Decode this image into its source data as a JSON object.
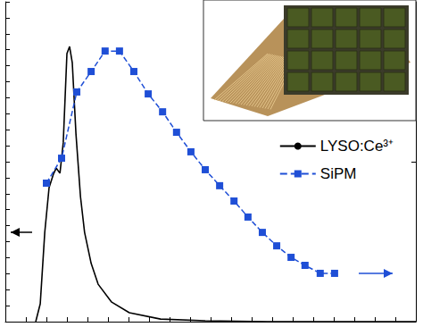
{
  "chart_data": {
    "type": "line",
    "xlim": [
      0,
      100
    ],
    "xticks": [
      0,
      5,
      10,
      15,
      20,
      25,
      30,
      35,
      40,
      45,
      50,
      55,
      60,
      65,
      70,
      75,
      80,
      85,
      90,
      95,
      100
    ],
    "ylim": [
      0,
      100
    ],
    "yticks": [
      0,
      5,
      10,
      15,
      20,
      25,
      30,
      35,
      40,
      45,
      50,
      55,
      60,
      65,
      70,
      75,
      80,
      85,
      90,
      95,
      100
    ],
    "y2lim": [
      0,
      100
    ],
    "y2ticks": [
      0,
      50,
      100
    ],
    "tick_labels": false,
    "grid": false,
    "legend": "right",
    "series": [
      {
        "name": "LYSO:Ce³⁺",
        "color": "#000000",
        "line_style": "solid",
        "marker": "none",
        "x": [
          7.4,
          8.5,
          9.6,
          10.65,
          11.7,
          12.4,
          13.3,
          14.1,
          15,
          15.65,
          16.3,
          17.2,
          18.3,
          19.3,
          20.9,
          22.6,
          25.9,
          30.2,
          37.8,
          48.7,
          63.9,
          100
        ],
        "values": [
          0,
          5.6,
          27.9,
          41.9,
          46.1,
          48,
          46.4,
          55.9,
          83.8,
          86,
          81,
          58.7,
          39.1,
          27.9,
          18.2,
          11.7,
          6.1,
          2.8,
          0.8,
          0.3,
          0,
          0
        ]
      },
      {
        "name": "SiPM",
        "color": "#1f4fd6",
        "line_style": "dashed",
        "marker": "square",
        "axis": "y2",
        "x": [
          10,
          13.7,
          17.4,
          20.9,
          24.3,
          27.8,
          31.3,
          34.8,
          38.3,
          41.7,
          45.2,
          48.7,
          52.2,
          55.7,
          59.1,
          62.6,
          66.1,
          69.6,
          73,
          76.7,
          80.2
        ],
        "values": [
          43.3,
          51.1,
          71.8,
          78.2,
          84.6,
          84.6,
          78.2,
          71.2,
          65.6,
          59.2,
          53.1,
          47.5,
          42.5,
          37.7,
          32.7,
          27.9,
          23.7,
          20.1,
          17.6,
          15.1,
          15.1
        ]
      }
    ]
  }
}
